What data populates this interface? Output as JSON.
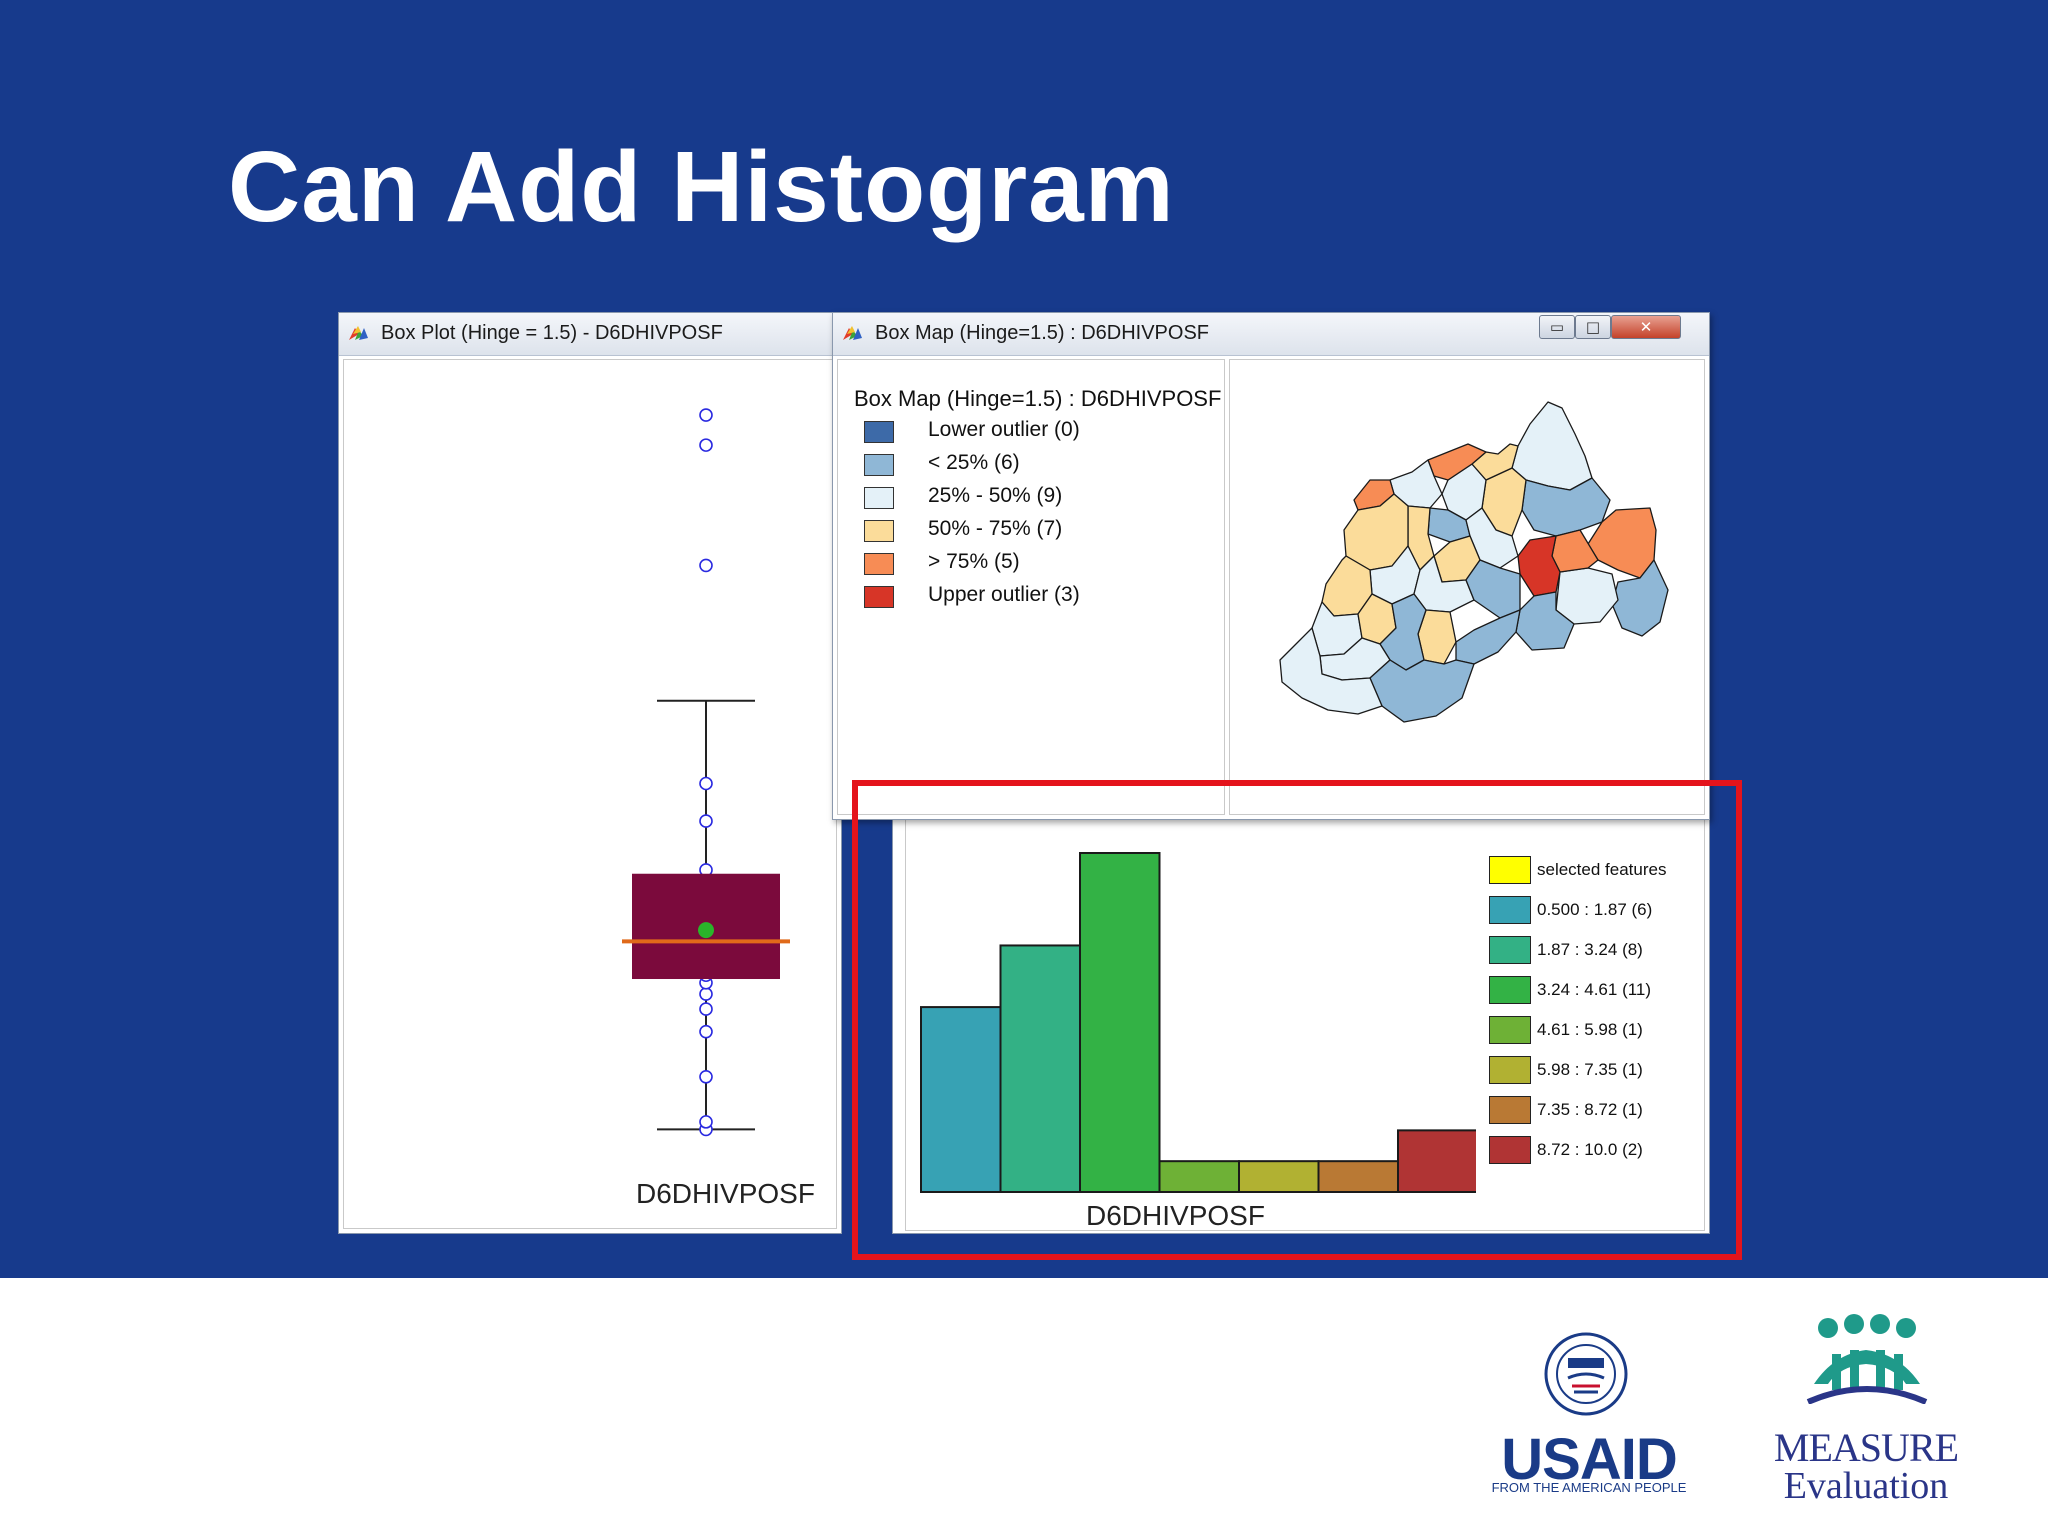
{
  "slide": {
    "title": "Can Add Histogram",
    "background": "#173a8c"
  },
  "box_plot_window": {
    "title": "Box Plot (Hinge = 1.5) - D6DHIVPOSF",
    "variable_label": "D6DHIVPOSF",
    "box_color": "#7b0a3c",
    "median_color": "#e06a1a",
    "mean_color": "#2ab52a",
    "point_color": "#2a2ae0",
    "icon": "geoda-app-icon"
  },
  "box_map_window": {
    "title": "Box Map (Hinge=1.5) : D6DHIVPOSF",
    "legend_title": "Box Map (Hinge=1.5) : D6DHIVPOSF",
    "controls": {
      "minimize": "▭",
      "maximize": "□",
      "close": "✕"
    },
    "legend": [
      {
        "label": "Lower outlier (0)",
        "color": "#3d6aa8"
      },
      {
        "label": "< 25% (6)",
        "color": "#8fb7d6"
      },
      {
        "label": "25% - 50% (9)",
        "color": "#e4f1f8"
      },
      {
        "label": "50% - 75% (7)",
        "color": "#fbdc9a"
      },
      {
        "label": "> 75% (5)",
        "color": "#f78c55"
      },
      {
        "label": "Upper outlier (3)",
        "color": "#d73527"
      }
    ],
    "icon": "geoda-app-icon"
  },
  "histogram_window": {
    "variable_label": "D6DHIVPOSF",
    "legend": [
      {
        "label": "selected features",
        "color": "#ffff00"
      },
      {
        "label": "0.500 : 1.87 (6)",
        "color": "#37a2b4"
      },
      {
        "label": "1.87 : 3.24 (8)",
        "color": "#33b185"
      },
      {
        "label": "3.24 : 4.61 (11)",
        "color": "#33b245"
      },
      {
        "label": "4.61 : 5.98 (1)",
        "color": "#6eb136"
      },
      {
        "label": "5.98 : 7.35 (1)",
        "color": "#b1b132"
      },
      {
        "label": "7.35 : 8.72 (1)",
        "color": "#b97934"
      },
      {
        "label": "8.72 : 10.0 (2)",
        "color": "#b03434"
      }
    ]
  },
  "chart_data": [
    {
      "type": "bar",
      "categories": [
        "0.500 : 1.87",
        "1.87 : 3.24",
        "3.24 : 4.61",
        "4.61 : 5.98",
        "5.98 : 7.35",
        "7.35 : 8.72",
        "8.72 : 10.0"
      ],
      "values": [
        6,
        8,
        11,
        1,
        1,
        1,
        2
      ],
      "colors": [
        "#37a2b4",
        "#33b185",
        "#33b245",
        "#6eb136",
        "#b1b132",
        "#b97934",
        "#b03434"
      ],
      "title": "",
      "xlabel": "D6DHIVPOSF",
      "ylabel": "",
      "ylim": [
        0,
        11
      ],
      "grid": false,
      "legend_position": "right"
    },
    {
      "type": "scatter",
      "subtype": "box-plot",
      "xlabel": "D6DHIVPOSF",
      "ylim": [
        0,
        10.2
      ],
      "whisker_low": 0.5,
      "q1": 2.5,
      "median": 3.0,
      "q3": 3.9,
      "whisker_high": 6.2,
      "mean": 3.15,
      "points": [
        0.5,
        0.6,
        1.2,
        1.8,
        2.1,
        2.3,
        2.45,
        2.55,
        2.65,
        2.75,
        2.85,
        2.95,
        3.05,
        3.15,
        3.3,
        3.45,
        3.6,
        3.7,
        3.8,
        3.95,
        4.6,
        5.1,
        8.0,
        9.6,
        10.0
      ]
    }
  ]
}
